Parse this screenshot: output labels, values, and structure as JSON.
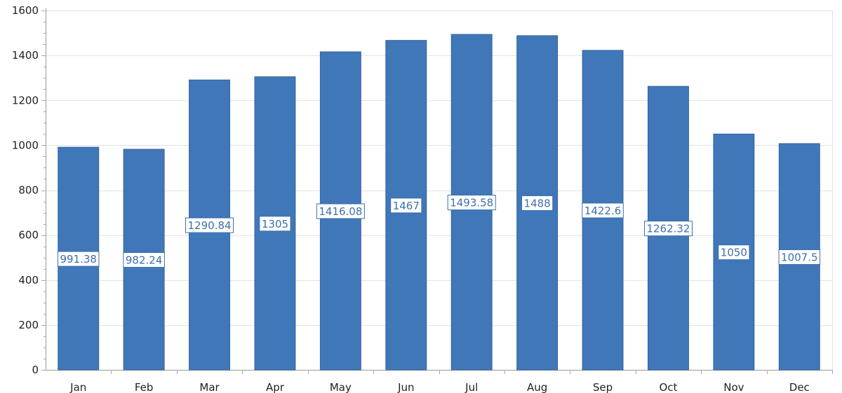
{
  "chart_data": {
    "type": "bar",
    "title": "",
    "xlabel": "",
    "ylabel": "",
    "categories": [
      "Jan",
      "Feb",
      "Mar",
      "Apr",
      "May",
      "Jun",
      "Jul",
      "Aug",
      "Sep",
      "Oct",
      "Nov",
      "Dec"
    ],
    "values": [
      991.38,
      982.24,
      1290.84,
      1305,
      1416.08,
      1467,
      1493.58,
      1488,
      1422.6,
      1262.32,
      1050,
      1007.5
    ],
    "data_labels": [
      "991.38",
      "982.24",
      "1290.84",
      "1305",
      "1416.08",
      "1467",
      "1493.58",
      "1488",
      "1422.6",
      "1262.32",
      "1050",
      "1007.5"
    ],
    "ylim": [
      0,
      1600
    ],
    "yticks": [
      0,
      200,
      400,
      600,
      800,
      1000,
      1200,
      1400,
      1600
    ],
    "ytick_labels": [
      "0",
      "200",
      "400",
      "600",
      "800",
      "1000",
      "1200",
      "1400",
      "1600"
    ],
    "grid": true,
    "legend": "none",
    "colors": {
      "bar_fill": "#4077b9",
      "bar_stroke": "#35649c",
      "grid": "#e3e3e3",
      "axis": "#a8a8a8",
      "label_border": "#3e6fad",
      "label_text": "#3e6fad",
      "label_bg": "#ffffff"
    }
  }
}
